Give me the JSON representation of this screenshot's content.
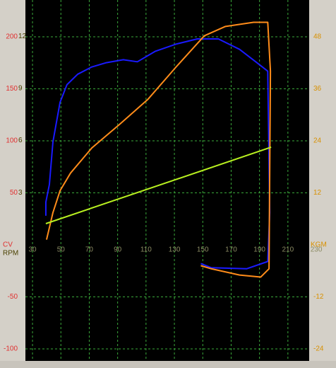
{
  "chart_data": {
    "type": "line",
    "xlim": [
      25,
      225
    ],
    "xticks": [
      30,
      50,
      70,
      90,
      110,
      130,
      150,
      170,
      190,
      210,
      230
    ],
    "ylim": [
      -111.6,
      235.4
    ],
    "yticks": [
      200,
      150,
      100,
      50,
      -50,
      -100
    ],
    "y3lim": [
      -6.7,
      14.1
    ],
    "y3ticks": [
      12,
      9,
      6,
      3
    ],
    "y2lim": [
      -26.8,
      56.5
    ],
    "y2ticks": [
      48,
      36,
      24,
      12,
      -12,
      -24
    ],
    "ylabel": "CV",
    "y3label": "RPM",
    "y2label": "KGM",
    "grid": true,
    "grid_color": "#3aa83a",
    "series": [
      {
        "color": "#1a1aff",
        "x": [
          39.4,
          39.4,
          41.9,
          44.4,
          49.4,
          54.3,
          61.8,
          71.7,
          81.6,
          94,
          103.9,
          116.4,
          131.2,
          146.1,
          161,
          175.9,
          188.3,
          195.8,
          197.2,
          195.8,
          180.9,
          156,
          148.6
        ],
        "values": [
          28,
          41,
          58,
          99,
          137,
          154,
          164,
          171,
          175,
          178,
          176,
          186,
          193,
          198,
          198,
          188,
          175,
          167,
          31,
          -16,
          -23,
          -22,
          -18
        ]
      },
      {
        "color": "#ff8c1a",
        "x": [
          39.9,
          44.4,
          49.4,
          56.8,
          71.7,
          91.5,
          111.4,
          131.2,
          151.1,
          166,
          185.8,
          195.8,
          197.7,
          196.7,
          190.8,
          175.9,
          156,
          148.6
        ],
        "values": [
          5,
          31,
          52,
          69,
          93,
          116,
          140,
          171,
          201,
          210,
          214,
          214,
          167,
          -23,
          -31,
          -29,
          -23,
          -20
        ]
      },
      {
        "color": "#b8f020",
        "x": [
          39.4,
          198.2
        ],
        "values": [
          20.4,
          93.9
        ]
      }
    ]
  }
}
